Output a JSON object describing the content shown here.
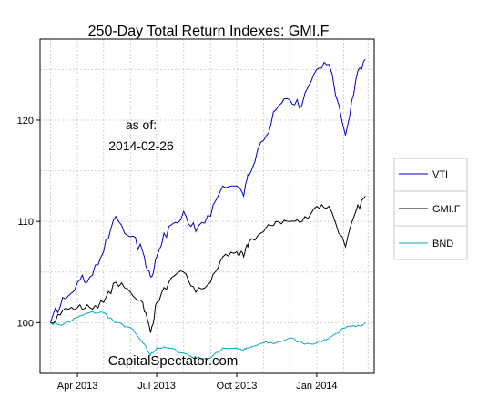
{
  "chart_data": {
    "type": "line",
    "title": "250-Day Total Return Indexes: GMI.F",
    "xlabel": "",
    "ylabel": "",
    "annotation": {
      "line1": "as of:",
      "line2": "2014-02-26"
    },
    "credit": "CapitalSpectator.com",
    "x_ticks": [
      "Apr 2013",
      "Jul 2013",
      "Oct 2013",
      "Jan 2014"
    ],
    "y_ticks": [
      100,
      110,
      120
    ],
    "ylim": [
      95,
      128
    ],
    "grid": true,
    "legend_position": "right",
    "x": [
      "2013-03-01",
      "2013-03-15",
      "2013-04-01",
      "2013-04-15",
      "2013-05-01",
      "2013-05-15",
      "2013-06-01",
      "2013-06-15",
      "2013-06-24",
      "2013-07-01",
      "2013-07-15",
      "2013-08-01",
      "2013-08-15",
      "2013-09-01",
      "2013-09-15",
      "2013-10-01",
      "2013-10-09",
      "2013-10-15",
      "2013-11-01",
      "2013-11-15",
      "2013-12-01",
      "2013-12-15",
      "2014-01-01",
      "2014-01-15",
      "2014-02-03",
      "2014-02-15",
      "2014-02-26"
    ],
    "series": [
      {
        "name": "VTI",
        "color": "#0000cc",
        "values": [
          100.0,
          102.5,
          104.0,
          104.5,
          107.0,
          110.5,
          108.5,
          107.0,
          104.5,
          106.5,
          109.5,
          111.0,
          109.0,
          110.5,
          113.5,
          113.5,
          112.5,
          114.5,
          118.0,
          121.0,
          122.0,
          121.5,
          125.0,
          125.5,
          118.5,
          124.0,
          126.0
        ]
      },
      {
        "name": "GMI.F",
        "color": "#000000",
        "values": [
          100.0,
          101.2,
          101.5,
          101.5,
          102.0,
          104.0,
          103.0,
          102.0,
          99.0,
          102.0,
          104.0,
          105.0,
          103.0,
          104.0,
          106.5,
          107.0,
          106.5,
          108.0,
          109.0,
          110.0,
          110.0,
          110.0,
          111.5,
          111.5,
          107.5,
          111.0,
          112.5
        ]
      },
      {
        "name": "BND",
        "color": "#00aacc",
        "values": [
          100.0,
          99.8,
          100.5,
          101.0,
          101.0,
          100.0,
          99.5,
          98.0,
          96.8,
          97.5,
          97.5,
          97.0,
          96.5,
          96.5,
          97.5,
          97.5,
          97.3,
          97.5,
          98.0,
          98.0,
          98.5,
          98.0,
          98.0,
          98.5,
          99.5,
          99.6,
          100.0
        ]
      }
    ]
  }
}
